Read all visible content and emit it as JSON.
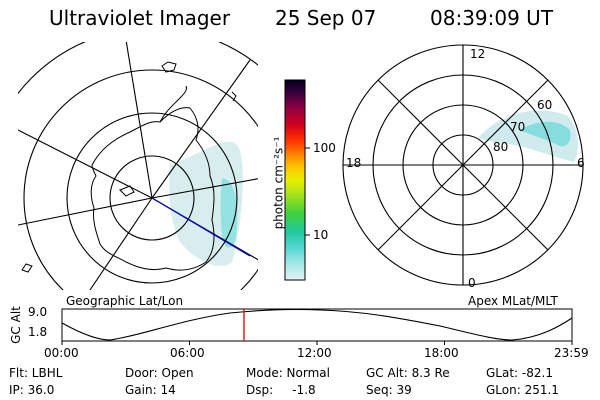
{
  "header": {
    "instrument": "Ultraviolet Imager",
    "date": "25 Sep 07",
    "time": "08:39:09 UT"
  },
  "left_panel": {
    "caption": "Geographic Lat/Lon"
  },
  "right_panel": {
    "caption": "Apex MLat/MLT",
    "mlat_labels": [
      "80",
      "70",
      "60"
    ],
    "mlt_labels": {
      "top": "12",
      "bottom": "0",
      "left": "18",
      "right": "6"
    }
  },
  "colorbar": {
    "unit_label": "photon cm⁻²s⁻¹",
    "ticks": [
      "100",
      "10"
    ],
    "colors": [
      "#e6f0f0",
      "#b0e8e8",
      "#60d8d8",
      "#20c8a0",
      "#40d040",
      "#a0e020",
      "#e8f000",
      "#ffc000",
      "#ff8000",
      "#ff3000",
      "#d00020",
      "#900040",
      "#400040",
      "#000020"
    ]
  },
  "altitude_plot": {
    "ylabel": "GC Alt",
    "ymax": "9.0",
    "ymin": "1.8",
    "xticks": [
      "00:00",
      "06:00",
      "12:00",
      "18:00",
      "23:59"
    ],
    "marker_color": "#e00000"
  },
  "info": {
    "filter": "Flt: LBHL",
    "ip": "IP: 36.0",
    "door": "Door: Open",
    "gain": "Gain: 14",
    "mode": "Mode: Normal",
    "dsp": "Dsp:     -1.8",
    "gcalt": "GC Alt: 8.3 Re",
    "seq": "Seq: 39",
    "glat": "GLat: -82.1",
    "glon": "GLon: 251.1"
  }
}
